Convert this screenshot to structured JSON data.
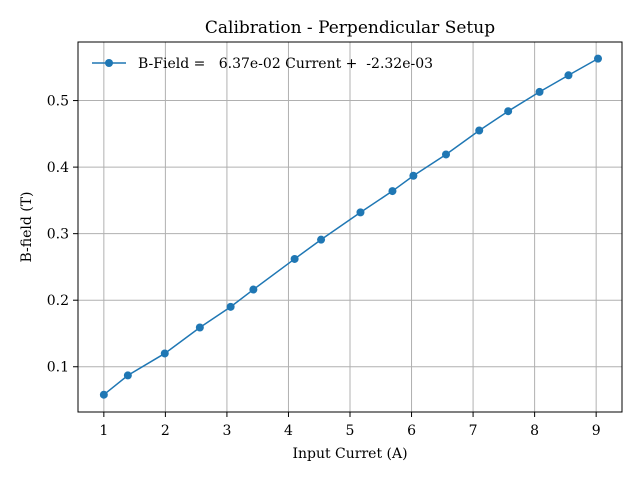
{
  "chart_data": {
    "type": "line",
    "title": "Calibration - Perpendicular Setup",
    "xlabel": "Input Curret (A)",
    "ylabel": "B-field (T)",
    "xlim": [
      0.58,
      9.42
    ],
    "ylim": [
      0.032,
      0.588
    ],
    "xticks": [
      1,
      2,
      3,
      4,
      5,
      6,
      7,
      8,
      9
    ],
    "yticks": [
      0.1,
      0.2,
      0.3,
      0.4,
      0.5
    ],
    "ytick_labels": [
      "0.1",
      "0.2",
      "0.3",
      "0.4",
      "0.5"
    ],
    "grid": true,
    "legend_position": "top-left",
    "series": [
      {
        "name": "B-Field =   6.37e-02 Current +  -2.32e-03",
        "color": "#1f77b4",
        "marker": "circle",
        "x": [
          1.0,
          1.39,
          1.99,
          2.56,
          3.06,
          3.43,
          4.1,
          4.53,
          5.17,
          5.69,
          6.03,
          6.56,
          7.1,
          7.57,
          8.08,
          8.55,
          9.03
        ],
        "y": [
          0.058,
          0.087,
          0.12,
          0.159,
          0.19,
          0.216,
          0.262,
          0.291,
          0.332,
          0.364,
          0.387,
          0.419,
          0.455,
          0.484,
          0.513,
          0.538,
          0.563
        ]
      }
    ]
  }
}
